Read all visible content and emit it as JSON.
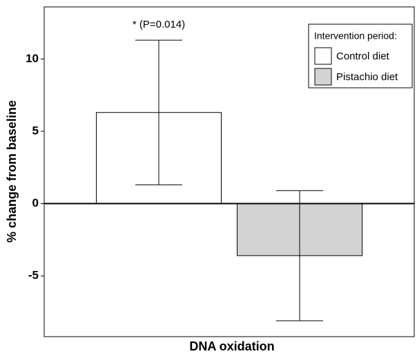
{
  "chart_data": {
    "type": "bar",
    "categories": [
      "DNA oxidation"
    ],
    "xlabel": "DNA oxidation",
    "ylabel": "% change from baseline",
    "annotation": "* (P=0.014)",
    "legend_title": "Intervention period:",
    "legend_position": "upper right",
    "series": [
      {
        "name": "Control diet",
        "color": "#ffffff",
        "values": [
          6.3
        ],
        "errors": [
          5.0
        ]
      },
      {
        "name": "Pistachio diet",
        "color": "#d3d3d3",
        "values": [
          -3.6
        ],
        "errors": [
          4.5
        ]
      }
    ],
    "ylim": [
      -9.2,
      13.6
    ],
    "yticks": [
      -5,
      0,
      5,
      10
    ],
    "grid": false
  }
}
